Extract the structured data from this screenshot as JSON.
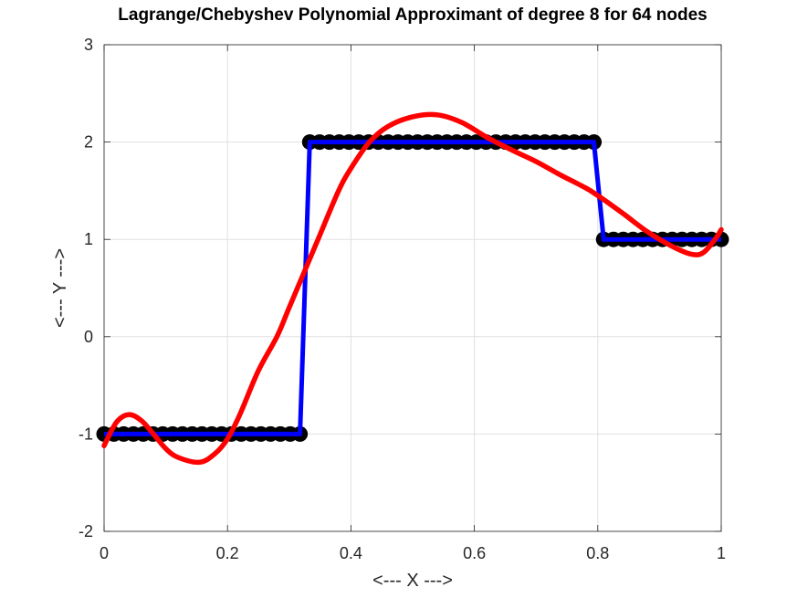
{
  "chart_data": {
    "type": "line",
    "title": "Lagrange/Chebyshev Polynomial Approximant of degree 8 for 64 nodes",
    "xlabel": "<--- X --->",
    "ylabel": "<---  Y --->",
    "xlim": [
      0,
      1
    ],
    "ylim": [
      -2,
      3
    ],
    "x_ticks": [
      0,
      0.2,
      0.4,
      0.6,
      0.8,
      1
    ],
    "x_tick_labels": [
      "0",
      "0.2",
      "0.4",
      "0.6",
      "0.8",
      "1"
    ],
    "y_ticks": [
      -2,
      -1,
      0,
      1,
      2,
      3
    ],
    "y_tick_labels": [
      "-2",
      "-1",
      "0",
      "1",
      "2",
      "3"
    ],
    "grid": true,
    "series": [
      {
        "kind": "nodes",
        "color": "#000000",
        "marker": "circle",
        "x": [
          0.0,
          0.0159,
          0.0317,
          0.0476,
          0.0635,
          0.0794,
          0.0952,
          0.1111,
          0.127,
          0.1429,
          0.1587,
          0.1746,
          0.1905,
          0.2063,
          0.2222,
          0.2381,
          0.254,
          0.2698,
          0.2857,
          0.3016,
          0.3175,
          0.3333,
          0.3492,
          0.3651,
          0.381,
          0.3968,
          0.4127,
          0.4286,
          0.4444,
          0.4603,
          0.4762,
          0.4921,
          0.5079,
          0.5238,
          0.5397,
          0.5556,
          0.5714,
          0.5873,
          0.6032,
          0.619,
          0.6349,
          0.6508,
          0.6667,
          0.6825,
          0.6984,
          0.7143,
          0.7302,
          0.746,
          0.7619,
          0.7778,
          0.7937,
          0.8095,
          0.8254,
          0.8413,
          0.8571,
          0.873,
          0.8889,
          0.9048,
          0.9206,
          0.9365,
          0.9524,
          0.9683,
          0.9841,
          1.0
        ],
        "y": [
          -1,
          -1,
          -1,
          -1,
          -1,
          -1,
          -1,
          -1,
          -1,
          -1,
          -1,
          -1,
          -1,
          -1,
          -1,
          -1,
          -1,
          -1,
          -1,
          -1,
          -1,
          2,
          2,
          2,
          2,
          2,
          2,
          2,
          2,
          2,
          2,
          2,
          2,
          2,
          2,
          2,
          2,
          2,
          2,
          2,
          2,
          2,
          2,
          2,
          2,
          2,
          2,
          2,
          2,
          2,
          2,
          1,
          1,
          1,
          1,
          1,
          1,
          1,
          1,
          1,
          1,
          1,
          1,
          1
        ]
      },
      {
        "kind": "data-line",
        "color": "#0000ff",
        "x": [
          0.0,
          0.3175,
          0.3333,
          0.7937,
          0.8095,
          1.0
        ],
        "y": [
          -1,
          -1,
          2,
          2,
          1,
          1
        ]
      },
      {
        "kind": "approximant",
        "color": "#ff0000",
        "x": [
          0.0,
          0.02,
          0.04,
          0.06,
          0.08,
          0.1,
          0.12,
          0.155,
          0.18,
          0.2,
          0.22,
          0.25,
          0.28,
          0.3,
          0.33,
          0.35,
          0.38,
          0.4,
          0.43,
          0.46,
          0.5,
          0.54,
          0.58,
          0.62,
          0.66,
          0.7,
          0.74,
          0.78,
          0.8,
          0.84,
          0.88,
          0.92,
          0.95,
          0.97,
          0.99,
          1.0
        ],
        "y": [
          -1.12,
          -0.88,
          -0.8,
          -0.86,
          -1.0,
          -1.15,
          -1.24,
          -1.29,
          -1.2,
          -1.05,
          -0.8,
          -0.35,
          0.0,
          0.3,
          0.75,
          1.05,
          1.5,
          1.73,
          2.0,
          2.16,
          2.26,
          2.28,
          2.2,
          2.05,
          1.92,
          1.8,
          1.66,
          1.53,
          1.45,
          1.27,
          1.08,
          0.93,
          0.85,
          0.86,
          1.0,
          1.1
        ]
      }
    ]
  }
}
